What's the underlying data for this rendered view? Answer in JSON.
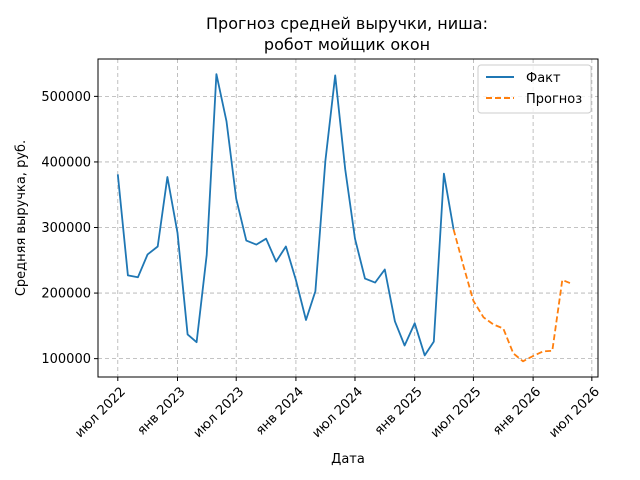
{
  "chart_data": {
    "type": "line",
    "title_lines": [
      "Прогноз средней выручки, ниша:",
      "робот мойщик окон"
    ],
    "xlabel": "Дата",
    "ylabel": "Средняя выручка, руб.",
    "x_tick_labels": [
      {
        "date": "2022-07-01",
        "label": "июл 2022"
      },
      {
        "date": "2023-01-01",
        "label": "янв 2023"
      },
      {
        "date": "2023-07-01",
        "label": "июл 2023"
      },
      {
        "date": "2024-01-01",
        "label": "янв 2024"
      },
      {
        "date": "2024-07-01",
        "label": "июл 2024"
      },
      {
        "date": "2025-01-01",
        "label": "янв 2025"
      },
      {
        "date": "2025-07-01",
        "label": "июл 2025"
      },
      {
        "date": "2026-01-01",
        "label": "янв 2026"
      },
      {
        "date": "2026-07-01",
        "label": "июл 2026"
      }
    ],
    "y_ticks": [
      100000,
      200000,
      300000,
      400000,
      500000
    ],
    "y_tick_labels": [
      "100000",
      "200000",
      "300000",
      "400000",
      "500000"
    ],
    "xlim": [
      "2022-05-01",
      "2026-07-20"
    ],
    "ylim": [
      72000,
      557000
    ],
    "grid": true,
    "legend_position": "top-right",
    "series": [
      {
        "name": "Факт",
        "color": "#1f77b4",
        "style": "solid",
        "points": [
          [
            "2022-07-01",
            381000
          ],
          [
            "2022-08-01",
            227000
          ],
          [
            "2022-09-01",
            224000
          ],
          [
            "2022-10-01",
            259000
          ],
          [
            "2022-11-01",
            271000
          ],
          [
            "2022-12-01",
            377000
          ],
          [
            "2023-01-01",
            292000
          ],
          [
            "2023-02-01",
            137000
          ],
          [
            "2023-03-01",
            125000
          ],
          [
            "2023-04-01",
            258000
          ],
          [
            "2023-05-01",
            534000
          ],
          [
            "2023-06-01",
            462000
          ],
          [
            "2023-07-01",
            344000
          ],
          [
            "2023-08-01",
            280000
          ],
          [
            "2023-09-01",
            274000
          ],
          [
            "2023-10-01",
            283000
          ],
          [
            "2023-11-01",
            248000
          ],
          [
            "2023-12-01",
            271000
          ],
          [
            "2024-01-01",
            220000
          ],
          [
            "2024-02-01",
            159000
          ],
          [
            "2024-03-01",
            203000
          ],
          [
            "2024-04-01",
            402000
          ],
          [
            "2024-05-01",
            532000
          ],
          [
            "2024-06-01",
            389000
          ],
          [
            "2024-07-01",
            283000
          ],
          [
            "2024-08-01",
            222000
          ],
          [
            "2024-09-01",
            216000
          ],
          [
            "2024-10-01",
            236000
          ],
          [
            "2024-11-01",
            157000
          ],
          [
            "2024-12-01",
            120000
          ],
          [
            "2025-01-01",
            154000
          ],
          [
            "2025-02-01",
            105000
          ],
          [
            "2025-03-01",
            126000
          ],
          [
            "2025-04-01",
            382000
          ],
          [
            "2025-05-01",
            297000
          ]
        ]
      },
      {
        "name": "Прогноз",
        "color": "#ff7f0e",
        "style": "dashed",
        "points": [
          [
            "2025-05-01",
            297000
          ],
          [
            "2025-06-01",
            240000
          ],
          [
            "2025-07-01",
            188000
          ],
          [
            "2025-08-01",
            163000
          ],
          [
            "2025-09-01",
            152000
          ],
          [
            "2025-10-01",
            146000
          ],
          [
            "2025-11-01",
            108000
          ],
          [
            "2025-12-01",
            96000
          ],
          [
            "2026-01-01",
            104000
          ],
          [
            "2026-02-01",
            111000
          ],
          [
            "2026-03-01",
            112000
          ],
          [
            "2026-04-01",
            220000
          ],
          [
            "2026-05-01",
            214000
          ]
        ]
      }
    ]
  }
}
